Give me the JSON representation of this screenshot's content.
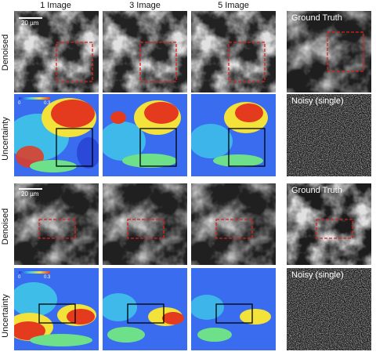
{
  "columns": [
    "1 Image",
    "3 Image",
    "5 Image"
  ],
  "row_labels": [
    "Denoised",
    "Uncertainty",
    "Denoised",
    "Uncertainty"
  ],
  "side_labels": [
    "Ground Truth",
    "Noisy (single)",
    "Ground Truth",
    "Noisy (single)"
  ],
  "scale_bar": "20 µm",
  "colorbar": {
    "min": "0",
    "max": "0.3"
  },
  "colors": {
    "roi_denoised": "#e0201a",
    "roi_uncertainty": "#000000"
  }
}
